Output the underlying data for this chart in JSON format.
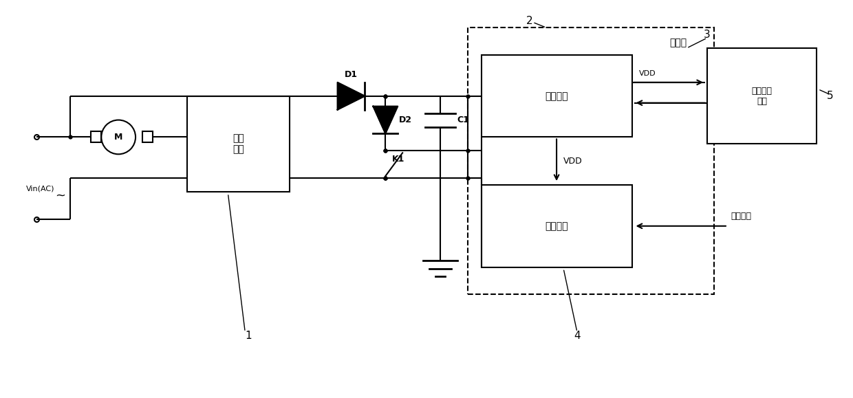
{
  "bg_color": "#ffffff",
  "line_color": "#000000",
  "lw": 1.5,
  "labels": {
    "vin_ac": "Vin(AC)",
    "rectifier": "整流\n模块",
    "controller_label": "控制器",
    "power_system": "电源系统",
    "speed_system": "调速系统",
    "clamp_module": "钳位控制\n模块",
    "d1": "D1",
    "d2": "D2",
    "k1": "K1",
    "c1": "C1",
    "vdd1": "VDD",
    "vdd2": "VDD",
    "speed_signal": "调速信号",
    "num1": "1",
    "num2": "2",
    "num3": "3",
    "num4": "4",
    "num5": "5"
  },
  "figsize": [
    12.4,
    5.79
  ],
  "dpi": 100
}
